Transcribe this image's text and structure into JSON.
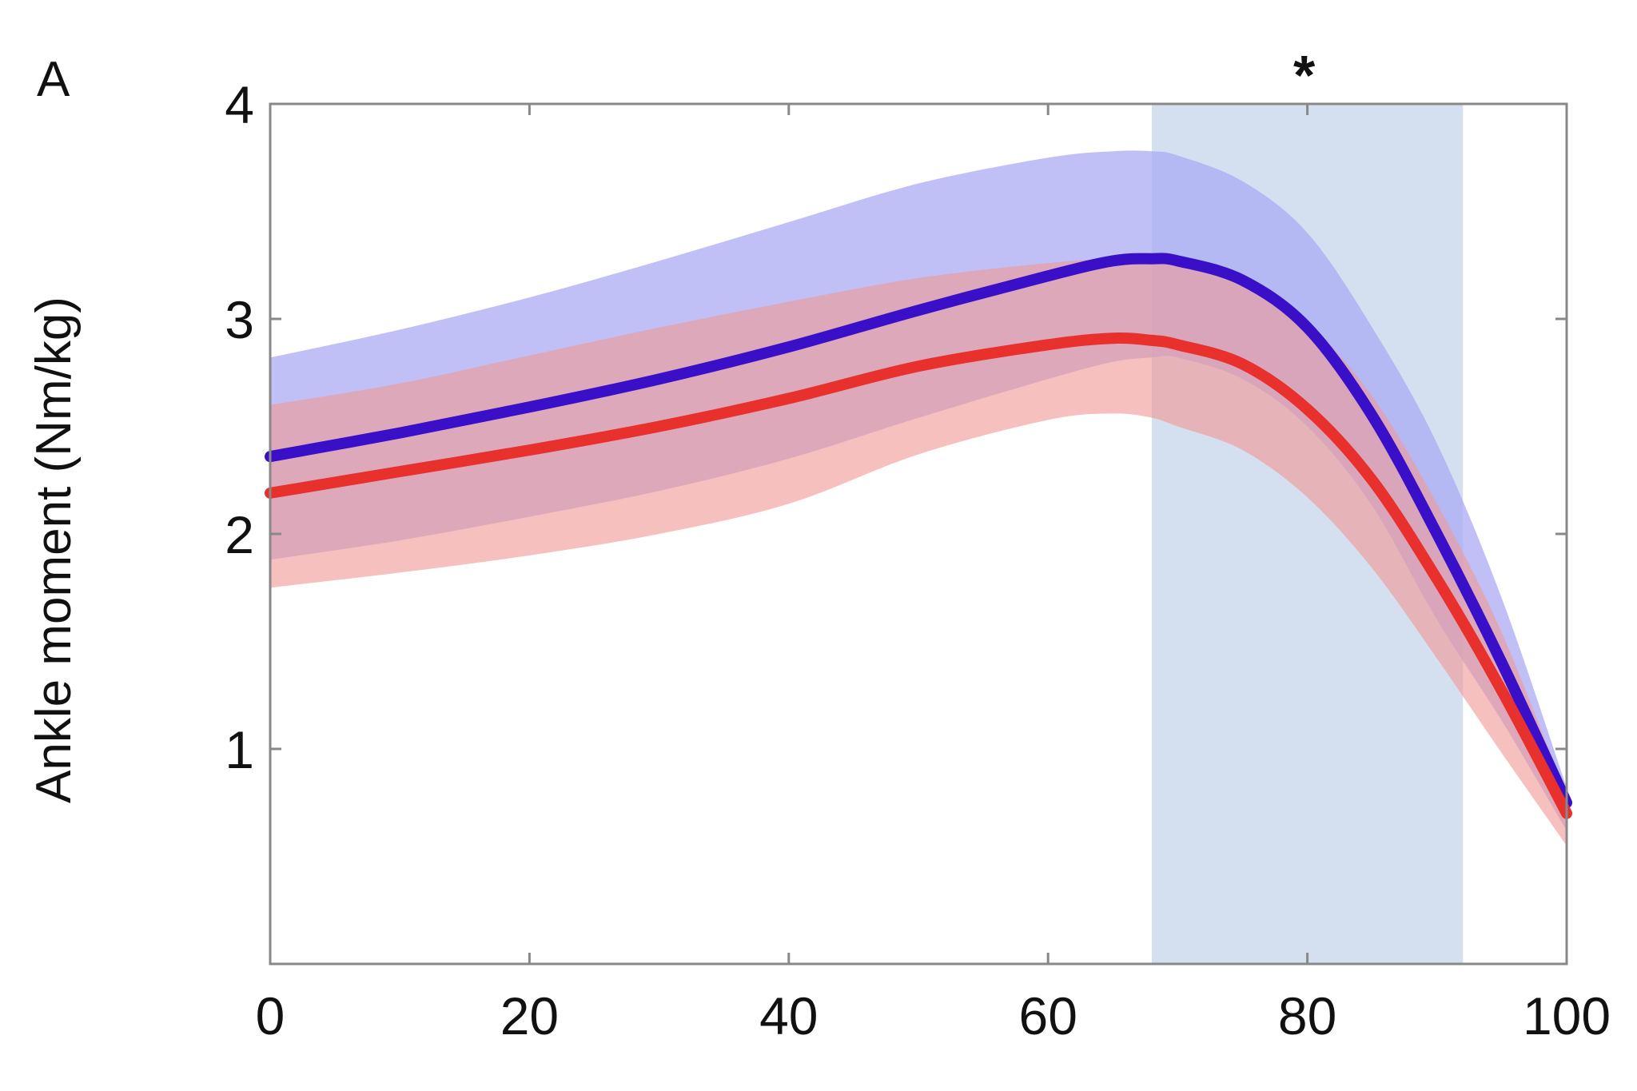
{
  "panel_label": "A",
  "significance_marker": "*",
  "colors": {
    "blue_line": "#3a0fc8",
    "blue_band": "#a8a8f4",
    "red_line": "#e8302c",
    "red_band": "#f09a96",
    "highlight": "#c5d5ea",
    "axis": "#888888"
  },
  "chart_data": {
    "type": "line",
    "title": "",
    "xlabel": "",
    "ylabel": "Ankle moment (Nm/kg)",
    "xlim": [
      0,
      100
    ],
    "ylim": [
      0,
      4
    ],
    "xticks": [
      0,
      20,
      40,
      60,
      80,
      100
    ],
    "xtick_labels": [
      "0",
      "20",
      "40",
      "60",
      "80",
      "100"
    ],
    "yticks": [
      1,
      2,
      3,
      4
    ],
    "ytick_labels": [
      "1",
      "2",
      "3",
      "4"
    ],
    "grid": false,
    "highlight_region": {
      "x_start": 68,
      "x_end": 92
    },
    "significance_x": 80,
    "x": [
      0,
      10,
      20,
      30,
      40,
      50,
      60,
      65,
      68,
      70,
      75,
      80,
      85,
      90,
      95,
      100
    ],
    "series": [
      {
        "color": "blue",
        "mean": [
          2.36,
          2.47,
          2.59,
          2.72,
          2.87,
          3.04,
          3.2,
          3.27,
          3.28,
          3.27,
          3.18,
          2.96,
          2.55,
          2.0,
          1.4,
          0.75
        ],
        "upper": [
          2.82,
          2.95,
          3.1,
          3.27,
          3.45,
          3.63,
          3.75,
          3.78,
          3.78,
          3.76,
          3.64,
          3.4,
          2.96,
          2.42,
          1.7,
          0.82
        ],
        "lower": [
          1.88,
          1.97,
          2.08,
          2.2,
          2.35,
          2.54,
          2.72,
          2.8,
          2.82,
          2.82,
          2.72,
          2.5,
          2.13,
          1.6,
          1.13,
          0.62
        ]
      },
      {
        "color": "red",
        "mean": [
          2.19,
          2.29,
          2.39,
          2.5,
          2.63,
          2.78,
          2.88,
          2.91,
          2.9,
          2.88,
          2.79,
          2.58,
          2.25,
          1.79,
          1.27,
          0.7
        ],
        "upper": [
          2.6,
          2.7,
          2.83,
          2.96,
          3.08,
          3.19,
          3.26,
          3.28,
          3.28,
          3.27,
          3.18,
          2.98,
          2.64,
          2.14,
          1.54,
          0.78
        ],
        "lower": [
          1.75,
          1.82,
          1.9,
          2.0,
          2.14,
          2.37,
          2.53,
          2.56,
          2.54,
          2.5,
          2.39,
          2.17,
          1.84,
          1.42,
          0.98,
          0.55
        ]
      }
    ]
  }
}
